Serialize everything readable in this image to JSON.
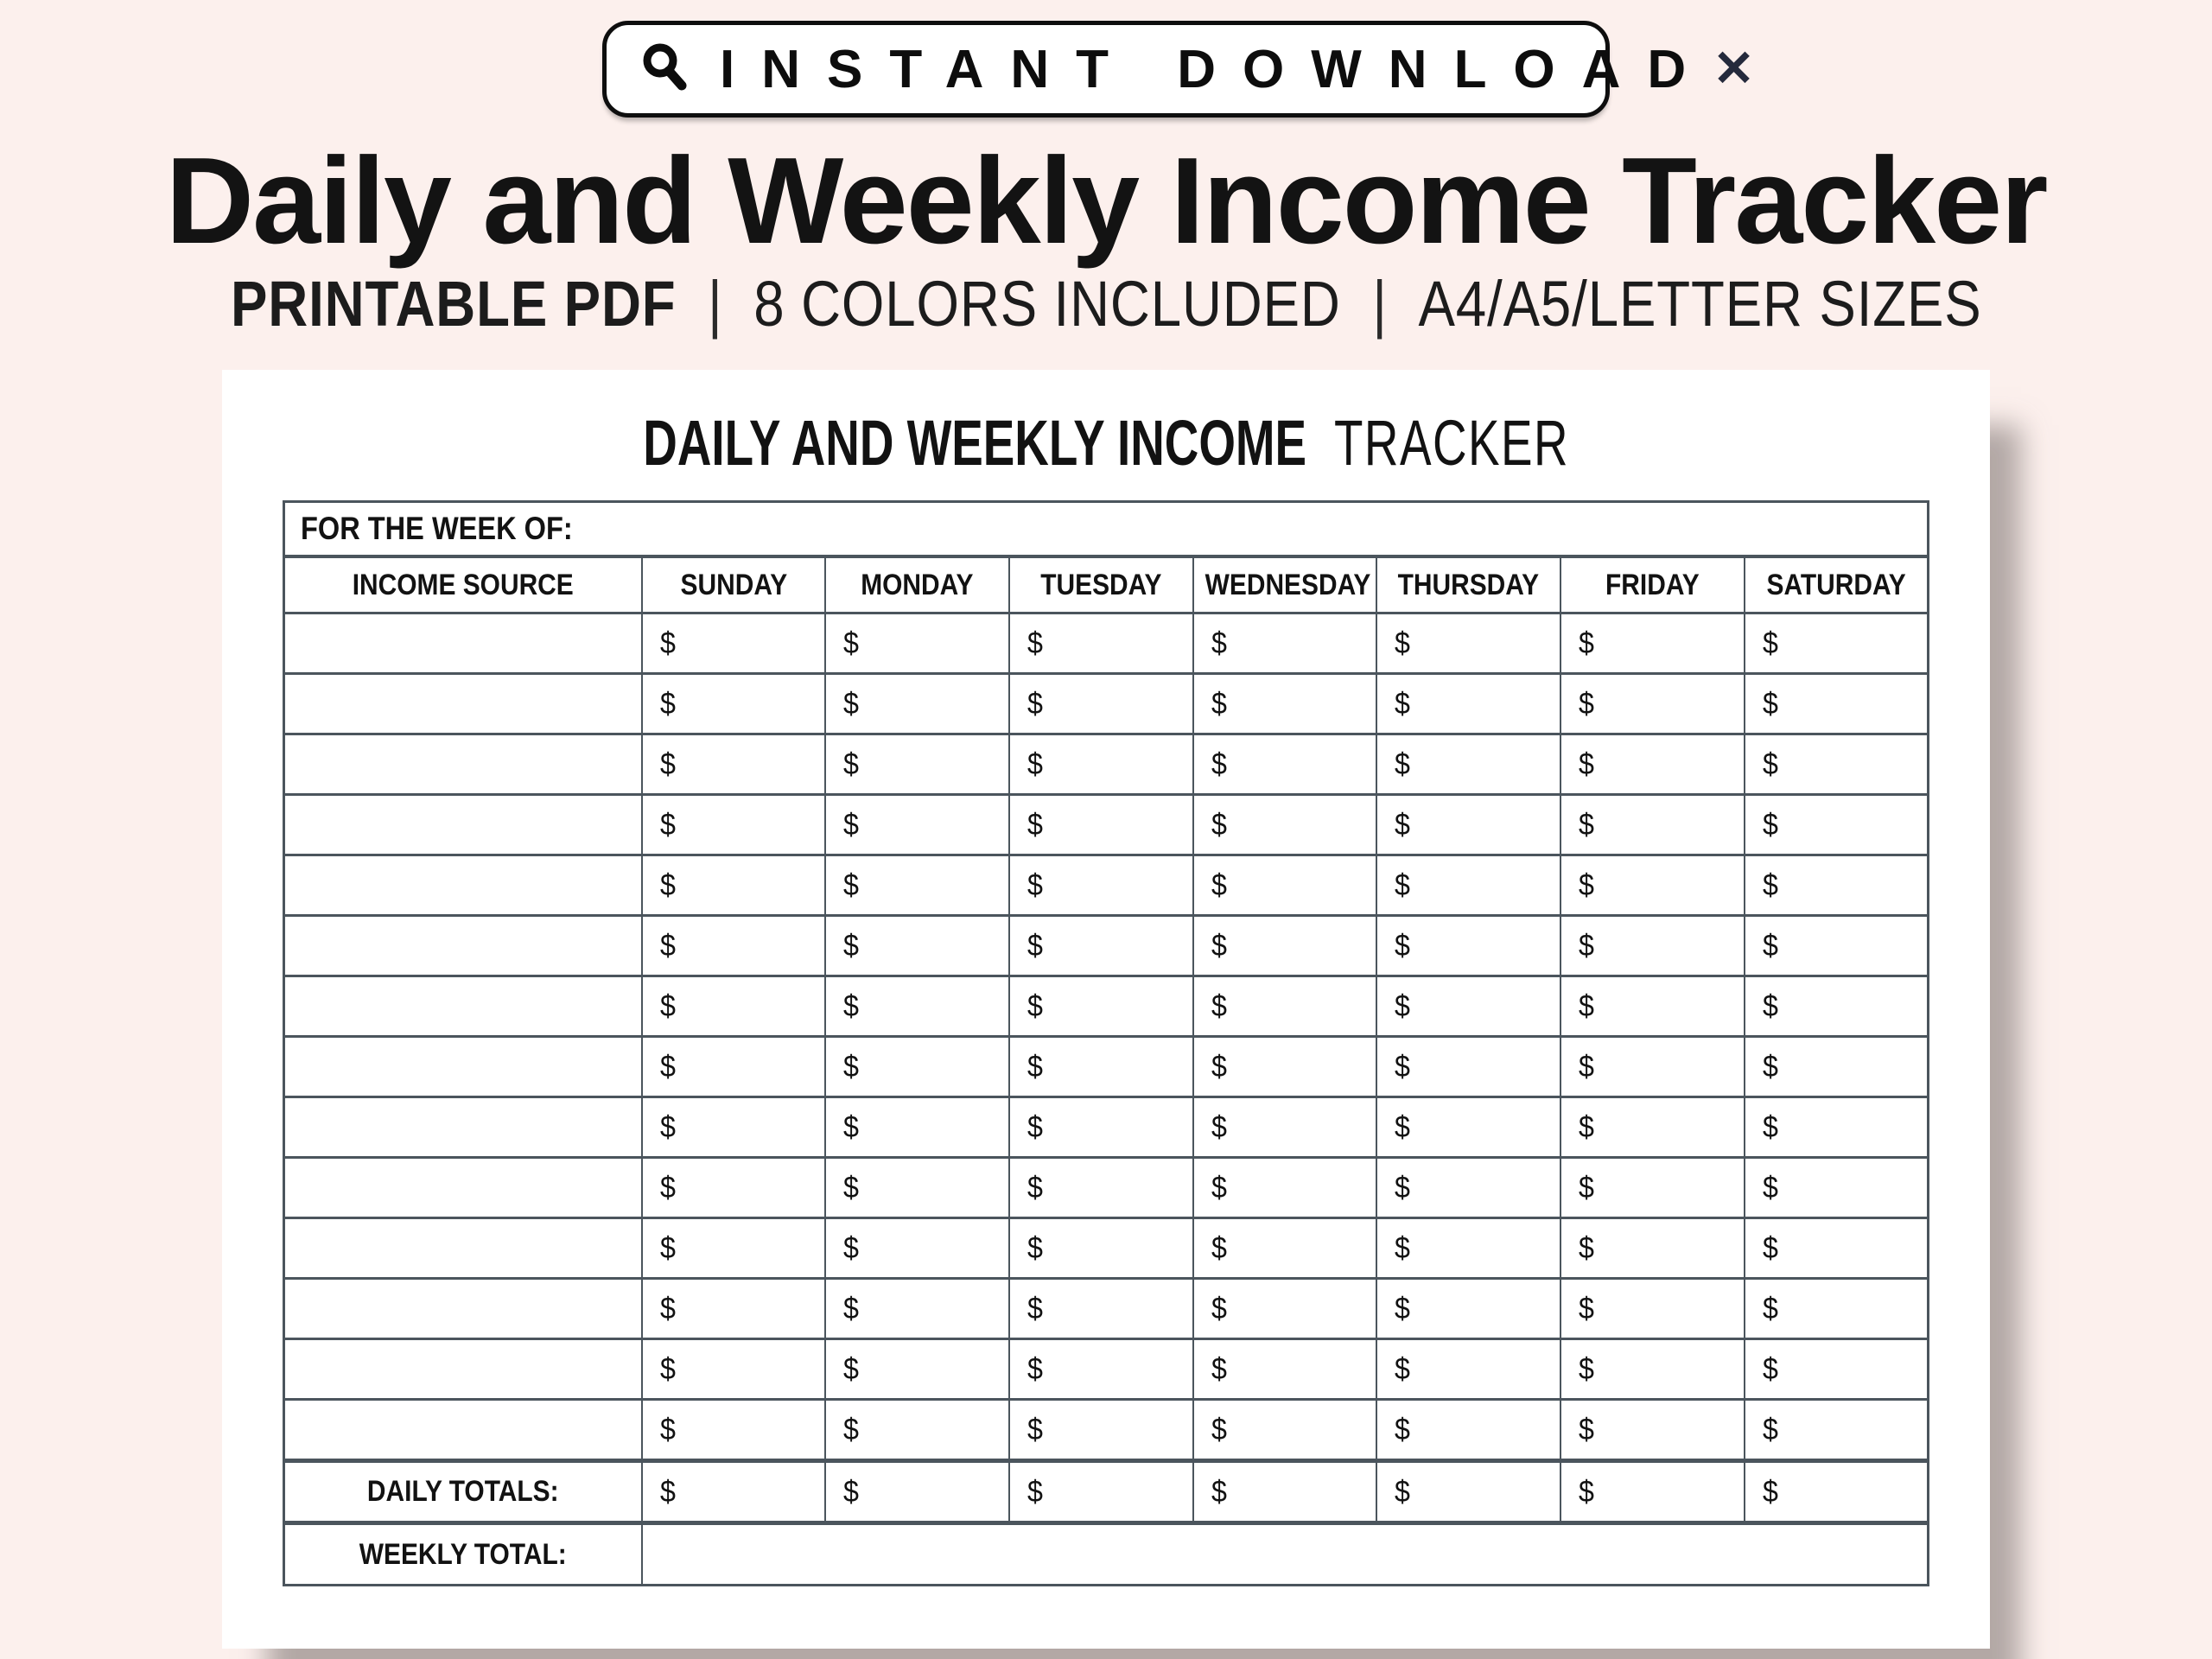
{
  "colors": {
    "background": "#fcf0ed",
    "paper": "#ffffff",
    "table_border": "#4b555d",
    "text": "#121212",
    "paper_shadow": "#a8a2a0"
  },
  "badge": {
    "search_icon": "magnifying-glass",
    "label": "INSTANT DOWNLOAD",
    "close_icon": "✕"
  },
  "title": "Daily and Weekly Income Tracker",
  "subtitle": {
    "segments": [
      "PRINTABLE PDF",
      "8 COLORS INCLUDED",
      "A4/A5/LETTER SIZES"
    ],
    "separator": "|"
  },
  "document": {
    "heading_bold": "DAILY AND WEEKLY INCOME",
    "heading_regular": "TRACKER",
    "week_of_label": "FOR THE WEEK OF:",
    "columns": [
      "INCOME SOURCE",
      "SUNDAY",
      "MONDAY",
      "TUESDAY",
      "WEDNESDAY",
      "THURSDAY",
      "FRIDAY",
      "SATURDAY"
    ],
    "data_row_count": 14,
    "currency_symbol": "$",
    "daily_totals_label": "DAILY TOTALS:",
    "weekly_total_label": "WEEKLY TOTAL:"
  }
}
